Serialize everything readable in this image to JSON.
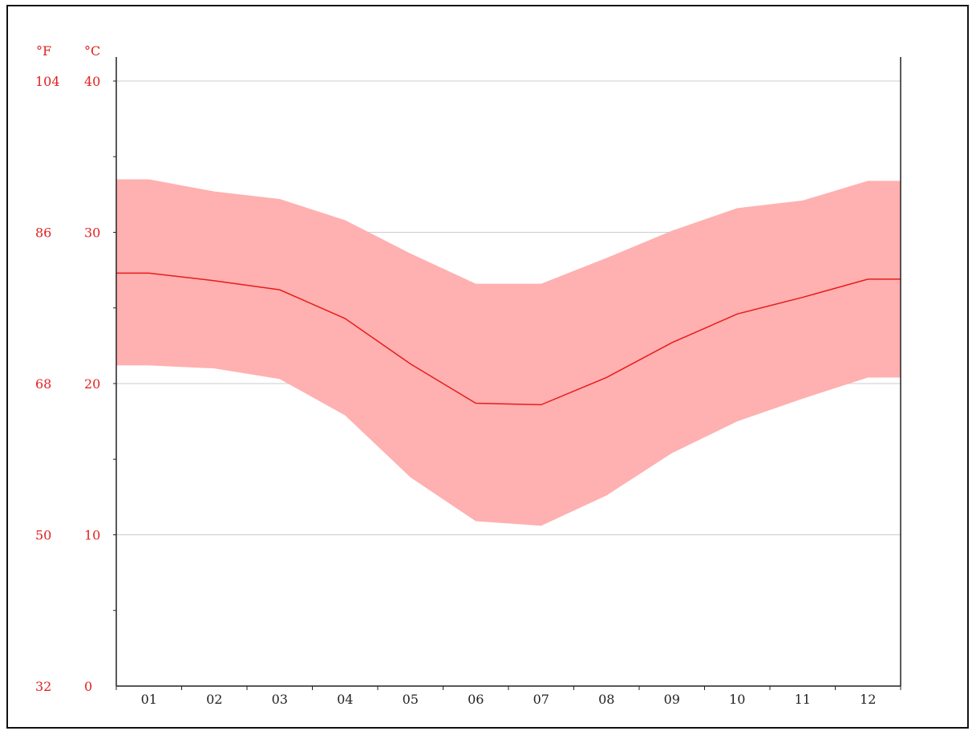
{
  "chart_data": {
    "type": "area",
    "unit_labels": {
      "fahrenheit": "°F",
      "celsius": "°C"
    },
    "x": [
      "01",
      "02",
      "03",
      "04",
      "05",
      "06",
      "07",
      "08",
      "09",
      "10",
      "11",
      "12"
    ],
    "ylim": [
      0,
      40
    ],
    "y_ticks_celsius": [
      "0",
      "10",
      "20",
      "30",
      "40"
    ],
    "y_ticks_fahrenheit": [
      "32",
      "50",
      "68",
      "86",
      "104"
    ],
    "grid": true,
    "series": [
      {
        "values": [
          27.3,
          26.8,
          26.2,
          24.3,
          21.3,
          18.7,
          18.6,
          20.4,
          22.7,
          24.6,
          25.7,
          26.9
        ]
      },
      {
        "values": [
          33.5,
          32.7,
          32.2,
          30.8,
          28.6,
          26.6,
          26.6,
          28.3,
          30.1,
          31.6,
          32.1,
          33.4
        ]
      },
      {
        "values": [
          21.2,
          21.0,
          20.3,
          17.9,
          13.8,
          10.9,
          10.6,
          12.6,
          15.4,
          17.5,
          19.0,
          20.4
        ]
      }
    ],
    "colors": {
      "band": "#ffb0b0",
      "line": "#e81c1c",
      "axis_text": "#e02020",
      "grid": "#cccccc"
    }
  }
}
